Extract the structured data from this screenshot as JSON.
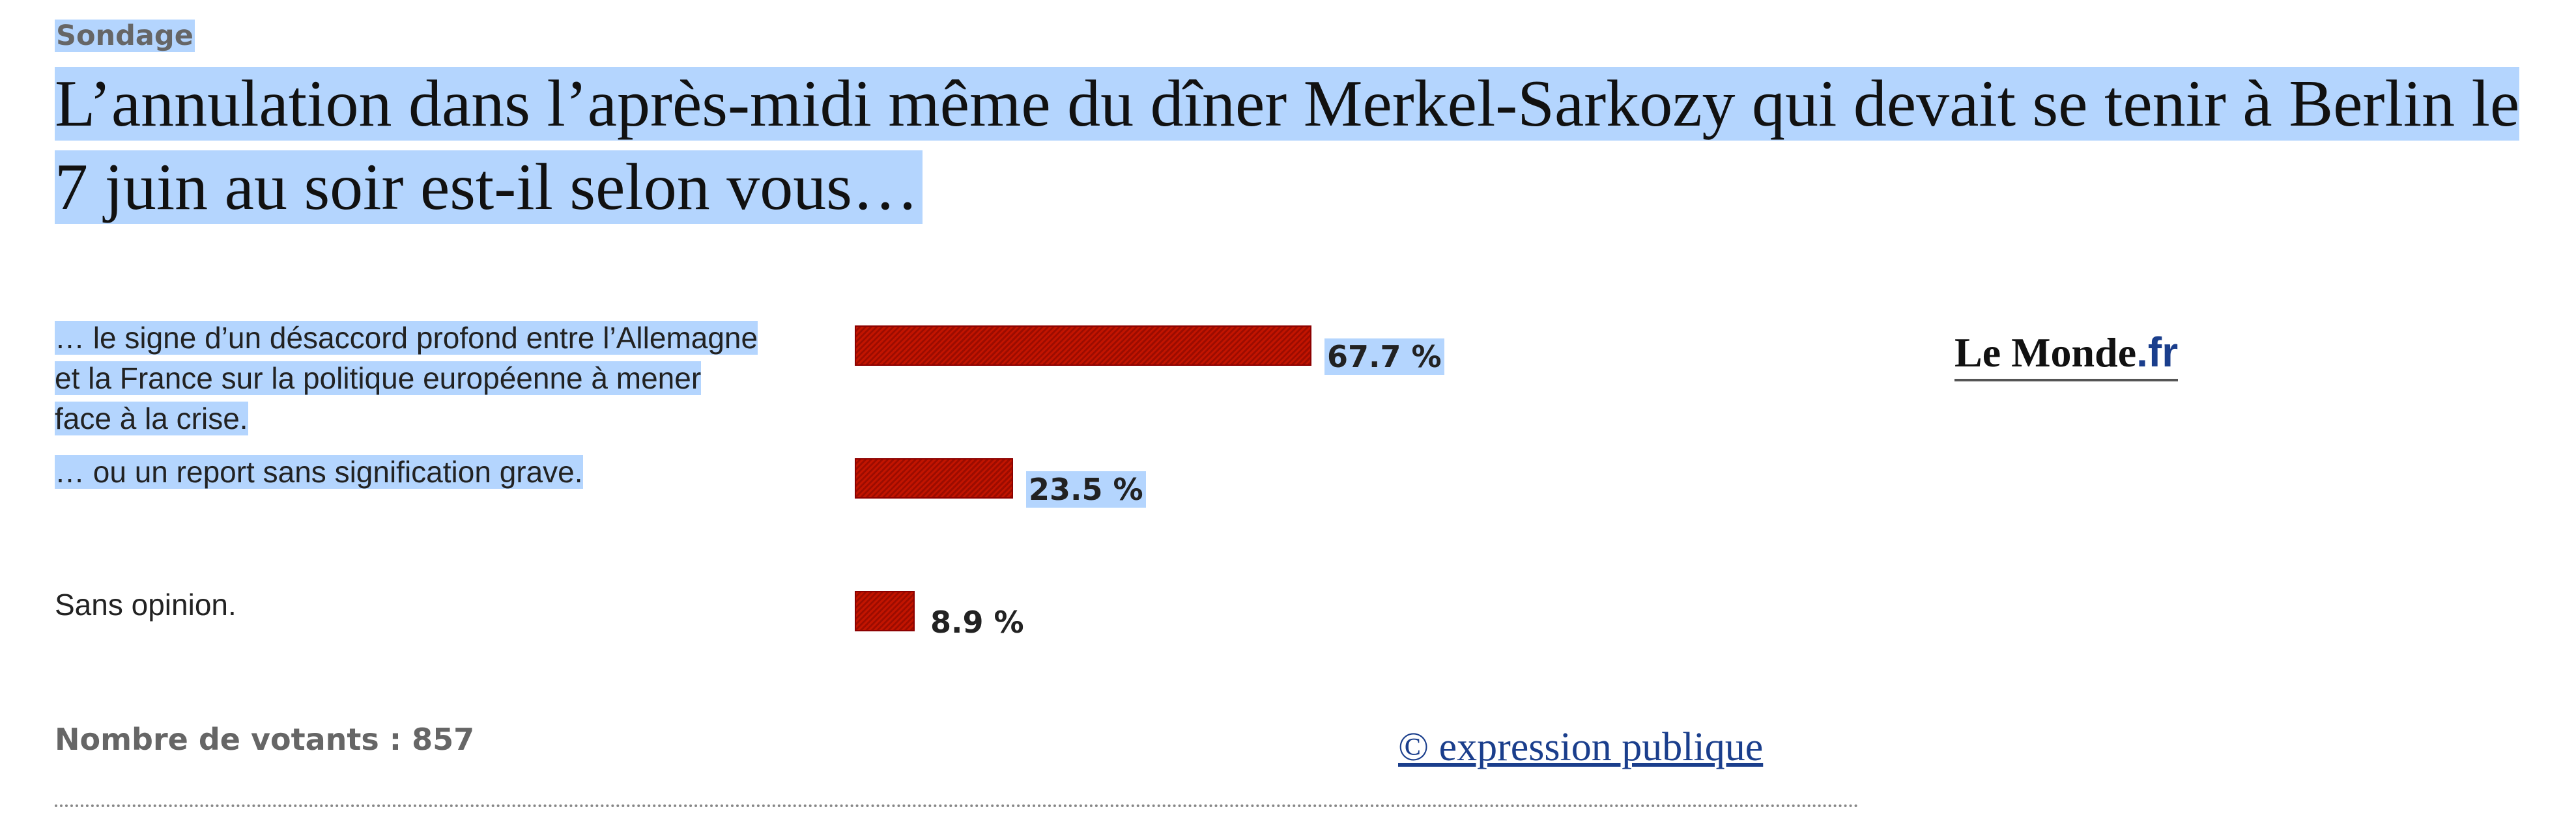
{
  "poll": {
    "kicker": "Sondage",
    "question": "L’annulation dans l’après-midi même du dîner Merkel-Sarkozy qui devait se tenir à Berlin le 7 juin au soir est-il selon vous…",
    "answers": [
      {
        "label_lines": [
          "… le signe d’un désaccord profond entre l’Allemagne",
          "et la France sur la politique européenne à mener",
          "face à la crise."
        ],
        "percent": 67.7,
        "percent_label": "67.7 %"
      },
      {
        "label_lines": [
          "… ou un report sans signification grave."
        ],
        "percent": 23.5,
        "percent_label": "23.5 %"
      },
      {
        "label_lines": [
          "Sans opinion."
        ],
        "percent": 8.9,
        "percent_label": "8.9 %"
      }
    ],
    "votes_label": "Nombre de votants : 857",
    "credit_link": "© expression publique",
    "logo": {
      "main": "Le Monde",
      "suffix": ".fr"
    },
    "colors": {
      "bar": "#c21400",
      "selection": "#b4d5fe",
      "link": "#1a3e8c"
    }
  }
}
